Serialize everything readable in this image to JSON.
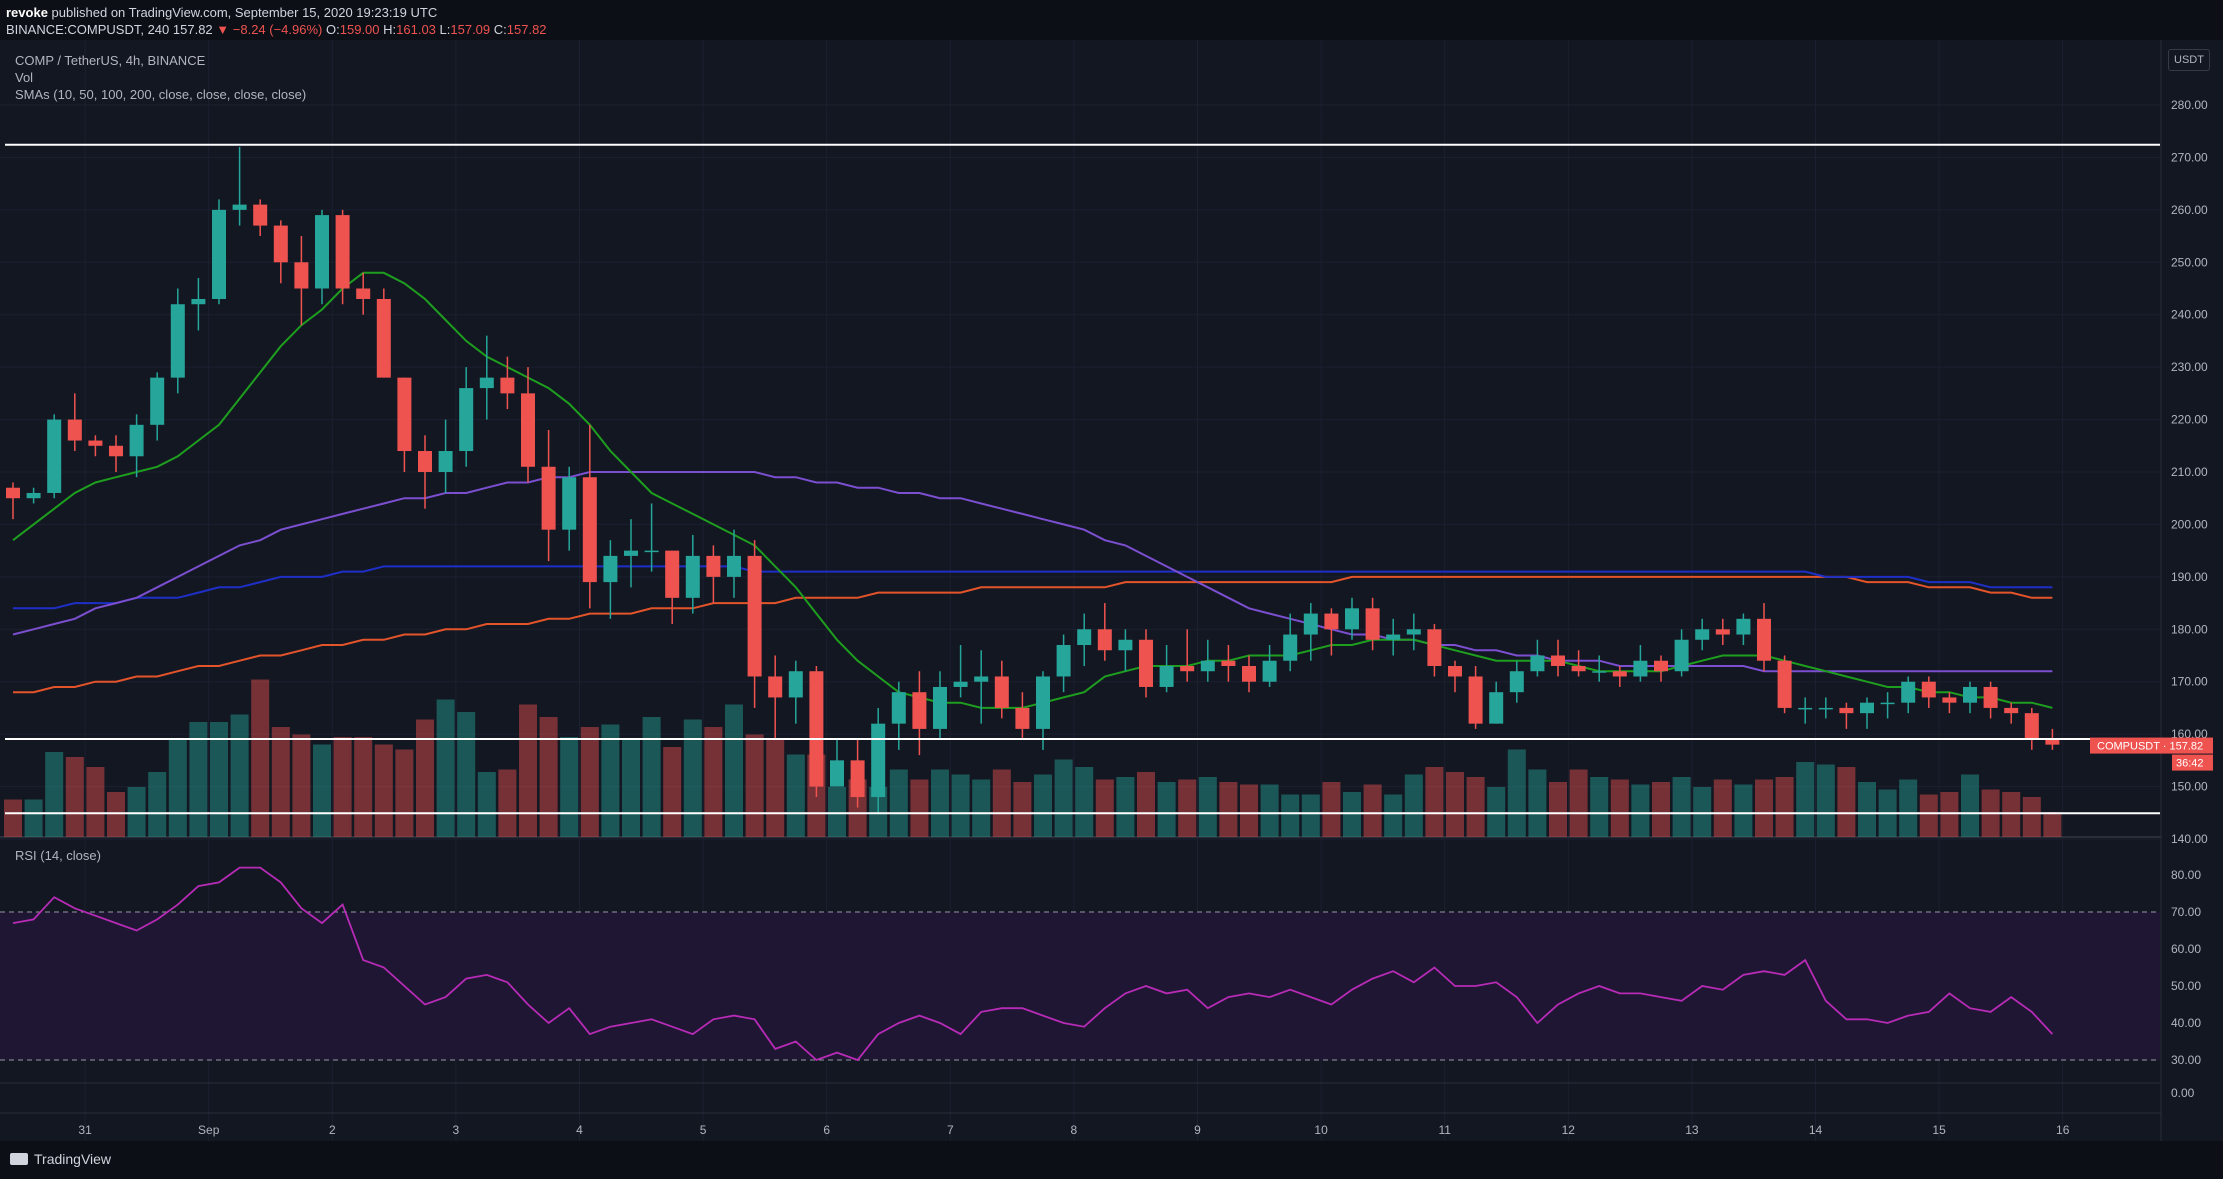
{
  "header": {
    "user": "revoke",
    "published_text": "published on TradingView.com, September 15, 2020 19:23:19 UTC",
    "symbol_line": "BINANCE:COMPUSDT, 240",
    "price": "157.82",
    "change": "▼ −8.24 (−4.96%)",
    "ohlc": {
      "O": "159.00",
      "H": "161.03",
      "L": "157.09",
      "C": "157.82"
    }
  },
  "legend": {
    "title": "COMP / TetherUS, 4h, BINANCE",
    "vol": "Vol",
    "smas": "SMAs (10, 50, 100, 200, close, close, close, close)",
    "rsi": "RSI (14, close)"
  },
  "currency_button": "USDT",
  "footer": {
    "brand": "TradingView"
  },
  "colors": {
    "background": "#131722",
    "up": "#26a69a",
    "down": "#ef5350",
    "sma10": "#1e9e1e",
    "sma50": "#7b4fd0",
    "sma100": "#1e2fc8",
    "sma200": "#e4542a",
    "rsi": "#b72bb6"
  },
  "chart_data": {
    "type": "candlestick",
    "symbol": "COMPUSDT",
    "interval": "4h",
    "price_ticks": [
      "280.00",
      "270.00",
      "260.00",
      "250.00",
      "240.00",
      "230.00",
      "220.00",
      "210.00",
      "200.00",
      "190.00",
      "180.00",
      "170.00",
      "160.00",
      "150.00",
      "140.00"
    ],
    "ylim": [
      132,
      284
    ],
    "x_tick_labels": [
      "31",
      "Sep",
      "2",
      "3",
      "4",
      "5",
      "6",
      "7",
      "8",
      "9",
      "10",
      "11",
      "12",
      "13",
      "14",
      "15",
      "16"
    ],
    "x_tick_index": [
      3.5,
      9.5,
      15.5,
      21.5,
      27.5,
      33.5,
      39.5,
      45.5,
      51.5,
      57.5,
      63.5,
      69.5,
      75.5,
      81.5,
      87.5,
      93.5,
      99.5
    ],
    "horizontal_levels": [
      {
        "value": 272.43,
        "label": "272.43"
      },
      {
        "value": 159.07,
        "label": "159.07"
      },
      {
        "value": 144.92,
        "label": "144.92"
      }
    ],
    "last_price_label": "COMPUSDT · 157.82",
    "countdown_label": "36:42",
    "candles": [
      [
        207,
        205,
        208,
        201
      ],
      [
        205,
        206,
        207,
        204
      ],
      [
        206,
        220,
        221,
        205
      ],
      [
        220,
        216,
        225,
        214
      ],
      [
        216,
        215,
        217,
        213
      ],
      [
        215,
        213,
        217,
        210
      ],
      [
        213,
        219,
        221,
        209
      ],
      [
        219,
        228,
        229,
        216
      ],
      [
        228,
        242,
        245,
        225
      ],
      [
        242,
        243,
        247,
        237
      ],
      [
        243,
        260,
        262,
        242
      ],
      [
        260,
        261,
        272,
        257
      ],
      [
        261,
        257,
        262,
        255
      ],
      [
        257,
        250,
        258,
        246
      ],
      [
        250,
        245,
        255,
        238
      ],
      [
        245,
        259,
        260,
        242
      ],
      [
        259,
        245,
        260,
        242
      ],
      [
        245,
        243,
        248,
        240
      ],
      [
        243,
        228,
        245,
        228
      ],
      [
        228,
        214,
        228,
        210
      ],
      [
        214,
        210,
        217,
        203
      ],
      [
        210,
        214,
        220,
        206
      ],
      [
        214,
        226,
        230,
        211
      ],
      [
        226,
        228,
        236,
        220
      ],
      [
        228,
        225,
        232,
        222
      ],
      [
        225,
        211,
        230,
        208
      ],
      [
        211,
        199,
        218,
        193
      ],
      [
        199,
        209,
        211,
        195
      ],
      [
        209,
        189,
        219,
        184
      ],
      [
        189,
        194,
        197,
        182
      ],
      [
        194,
        195,
        201,
        188
      ],
      [
        195,
        195,
        204,
        191
      ],
      [
        195,
        186,
        195,
        181
      ],
      [
        186,
        194,
        198,
        183
      ],
      [
        194,
        190,
        196,
        185
      ],
      [
        190,
        194,
        199,
        186
      ],
      [
        194,
        171,
        197,
        165
      ],
      [
        171,
        167,
        175,
        159
      ],
      [
        167,
        172,
        174,
        162
      ],
      [
        172,
        150,
        173,
        148
      ],
      [
        150,
        155,
        159,
        151
      ],
      [
        155,
        148,
        159,
        146
      ],
      [
        148,
        162,
        165,
        145
      ],
      [
        162,
        168,
        170,
        157
      ],
      [
        168,
        161,
        172,
        156
      ],
      [
        161,
        169,
        172,
        159
      ],
      [
        169,
        170,
        177,
        167
      ],
      [
        170,
        171,
        176,
        162
      ],
      [
        171,
        165,
        174,
        163
      ],
      [
        165,
        161,
        168,
        159
      ],
      [
        161,
        171,
        172,
        157
      ],
      [
        171,
        177,
        179,
        168
      ],
      [
        177,
        180,
        183,
        173
      ],
      [
        180,
        176,
        185,
        174
      ],
      [
        176,
        178,
        180,
        172
      ],
      [
        178,
        169,
        180,
        167
      ],
      [
        169,
        173,
        177,
        168
      ],
      [
        173,
        172,
        180,
        170
      ],
      [
        172,
        174,
        178,
        170
      ],
      [
        174,
        173,
        177,
        170
      ],
      [
        173,
        170,
        175,
        168
      ],
      [
        170,
        174,
        177,
        169
      ],
      [
        174,
        179,
        183,
        172
      ],
      [
        179,
        183,
        185,
        174
      ],
      [
        183,
        180,
        184,
        175
      ],
      [
        180,
        184,
        186,
        178
      ],
      [
        184,
        178,
        186,
        176
      ],
      [
        178,
        179,
        182,
        175
      ],
      [
        179,
        180,
        183,
        176
      ],
      [
        180,
        173,
        181,
        171
      ],
      [
        173,
        171,
        174,
        168
      ],
      [
        171,
        162,
        173,
        161
      ],
      [
        162,
        168,
        170,
        162
      ],
      [
        168,
        172,
        174,
        166
      ],
      [
        172,
        175,
        178,
        171
      ],
      [
        175,
        173,
        178,
        171
      ],
      [
        173,
        172,
        176,
        171
      ],
      [
        172,
        172,
        175,
        170
      ],
      [
        172,
        171,
        173,
        169
      ],
      [
        171,
        174,
        177,
        170
      ],
      [
        174,
        172,
        175,
        170
      ],
      [
        172,
        178,
        180,
        171
      ],
      [
        178,
        180,
        182,
        176
      ],
      [
        180,
        179,
        182,
        177
      ],
      [
        179,
        182,
        183,
        177
      ],
      [
        182,
        174,
        185,
        172
      ],
      [
        174,
        165,
        175,
        164
      ],
      [
        165,
        165,
        167,
        162
      ],
      [
        165,
        165,
        167,
        163
      ],
      [
        165,
        164,
        166,
        161
      ],
      [
        164,
        166,
        167,
        161
      ],
      [
        166,
        166,
        168,
        163
      ],
      [
        166,
        170,
        171,
        164
      ],
      [
        170,
        167,
        171,
        165
      ],
      [
        167,
        166,
        168,
        164
      ],
      [
        166,
        169,
        170,
        164
      ],
      [
        169,
        165,
        170,
        163
      ],
      [
        165,
        164,
        166,
        162
      ],
      [
        164,
        159,
        165,
        157
      ],
      [
        159,
        158,
        161,
        157
      ]
    ],
    "volume": [
      15,
      15,
      34,
      32,
      28,
      18,
      20,
      26,
      39,
      46,
      46,
      49,
      63,
      44,
      41,
      37,
      40,
      40,
      37,
      35,
      47,
      55,
      50,
      26,
      27,
      53,
      48,
      40,
      44,
      45,
      39,
      48,
      36,
      47,
      44,
      53,
      41,
      39,
      33,
      33,
      20,
      23,
      20,
      27,
      23,
      27,
      25,
      23,
      27,
      22,
      25,
      31,
      28,
      23,
      24,
      26,
      22,
      23,
      24,
      22
    ],
    "volume_tail": [
      21,
      21,
      17,
      17,
      22,
      18,
      21,
      17,
      25,
      28,
      26,
      24,
      20,
      35,
      27,
      22,
      27,
      24,
      23,
      21,
      22,
      24,
      20,
      23,
      21,
      23,
      24,
      30,
      29,
      28,
      22,
      19,
      23,
      17,
      18,
      25,
      19,
      18,
      16
    ],
    "sma10": [
      197,
      200,
      203,
      206,
      208,
      209,
      210,
      211,
      213,
      216,
      219,
      224,
      229,
      234,
      238,
      241,
      245,
      248,
      248,
      246,
      243,
      239,
      235,
      232,
      230,
      228,
      226,
      223,
      219,
      214,
      210,
      206,
      204,
      202,
      200,
      198,
      196,
      192,
      188,
      183,
      178,
      174,
      171,
      168,
      167,
      166,
      166,
      165,
      165,
      165,
      166,
      167,
      168,
      171,
      172,
      173,
      173,
      173,
      174,
      174,
      175,
      175,
      175,
      176,
      177,
      177,
      178,
      178,
      178,
      177,
      176,
      175,
      174,
      174,
      174,
      174,
      173,
      172,
      172,
      172,
      172,
      173,
      174,
      175,
      175,
      175,
      174,
      173,
      172,
      171,
      170,
      169,
      169,
      168,
      168,
      167,
      167,
      166,
      166,
      165
    ],
    "sma50": [
      179,
      180,
      181,
      182,
      184,
      185,
      186,
      188,
      190,
      192,
      194,
      196,
      197,
      199,
      200,
      201,
      202,
      203,
      204,
      205,
      205,
      206,
      206,
      207,
      208,
      208,
      209,
      209,
      210,
      210,
      210,
      210,
      210,
      210,
      210,
      210,
      210,
      209,
      209,
      208,
      208,
      207,
      207,
      206,
      206,
      205,
      205,
      204,
      203,
      202,
      201,
      200,
      199,
      197,
      196,
      194,
      192,
      190,
      188,
      186,
      184,
      183,
      182,
      181,
      180,
      179,
      179,
      178,
      178,
      177,
      177,
      176,
      176,
      175,
      175,
      174,
      174,
      174,
      173,
      173,
      173,
      173,
      173,
      173,
      173,
      172,
      172,
      172,
      172,
      172,
      172,
      172,
      172,
      172,
      172,
      172,
      172,
      172,
      172,
      172
    ],
    "sma100": [
      184,
      184,
      184,
      185,
      185,
      185,
      186,
      186,
      186,
      187,
      188,
      188,
      189,
      190,
      190,
      190,
      191,
      191,
      192,
      192,
      192,
      192,
      192,
      192,
      192,
      192,
      192,
      192,
      192,
      192,
      192,
      192,
      192,
      192,
      192,
      192,
      191,
      191,
      191,
      191,
      191,
      191,
      191,
      191,
      191,
      191,
      191,
      191,
      191,
      191,
      191,
      191,
      191,
      191,
      191,
      191,
      191,
      191,
      191,
      191,
      191,
      191,
      191,
      191,
      191,
      191,
      191,
      191,
      191,
      191,
      191,
      191,
      191,
      191,
      191,
      191,
      191,
      191,
      191,
      191,
      191,
      191,
      191,
      191,
      191,
      191,
      191,
      191,
      190,
      190,
      190,
      190,
      190,
      189,
      189,
      189,
      188,
      188,
      188,
      188
    ],
    "sma200": [
      168,
      168,
      169,
      169,
      170,
      170,
      171,
      171,
      172,
      173,
      173,
      174,
      175,
      175,
      176,
      177,
      177,
      178,
      178,
      179,
      179,
      180,
      180,
      181,
      181,
      181,
      182,
      182,
      183,
      183,
      183,
      184,
      184,
      184,
      185,
      185,
      185,
      185,
      186,
      186,
      186,
      186,
      187,
      187,
      187,
      187,
      187,
      188,
      188,
      188,
      188,
      188,
      188,
      188,
      189,
      189,
      189,
      189,
      189,
      189,
      189,
      189,
      189,
      189,
      189,
      190,
      190,
      190,
      190,
      190,
      190,
      190,
      190,
      190,
      190,
      190,
      190,
      190,
      190,
      190,
      190,
      190,
      190,
      190,
      190,
      190,
      190,
      190,
      190,
      190,
      189,
      189,
      189,
      188,
      188,
      188,
      187,
      187,
      186,
      186
    ],
    "rsi_ticks": [
      "80.00",
      "70.00",
      "60.00",
      "50.00",
      "40.00",
      "30.00",
      "0.00"
    ],
    "rsi_band": [
      30,
      70
    ],
    "rsi": [
      67,
      68,
      74,
      71,
      69,
      67,
      65,
      68,
      72,
      77,
      78,
      82,
      82,
      78,
      71,
      67,
      72,
      57,
      55,
      50,
      45,
      47,
      52,
      53,
      51,
      45,
      40,
      44,
      37,
      39,
      40,
      41,
      39,
      37,
      41,
      42,
      41,
      33,
      35,
      30,
      32,
      30,
      37,
      40,
      42,
      40,
      37,
      43,
      44,
      44,
      42,
      40,
      39,
      44,
      48,
      50,
      48,
      49,
      44,
      47,
      48,
      47,
      49,
      47,
      45,
      49,
      52,
      54,
      51,
      55,
      50,
      50,
      51,
      47,
      40,
      45,
      48,
      50,
      48,
      48,
      47,
      46,
      50,
      49,
      53,
      54,
      53,
      57,
      46,
      41,
      41,
      40,
      42,
      43,
      48,
      44,
      43,
      47,
      43,
      37
    ]
  }
}
